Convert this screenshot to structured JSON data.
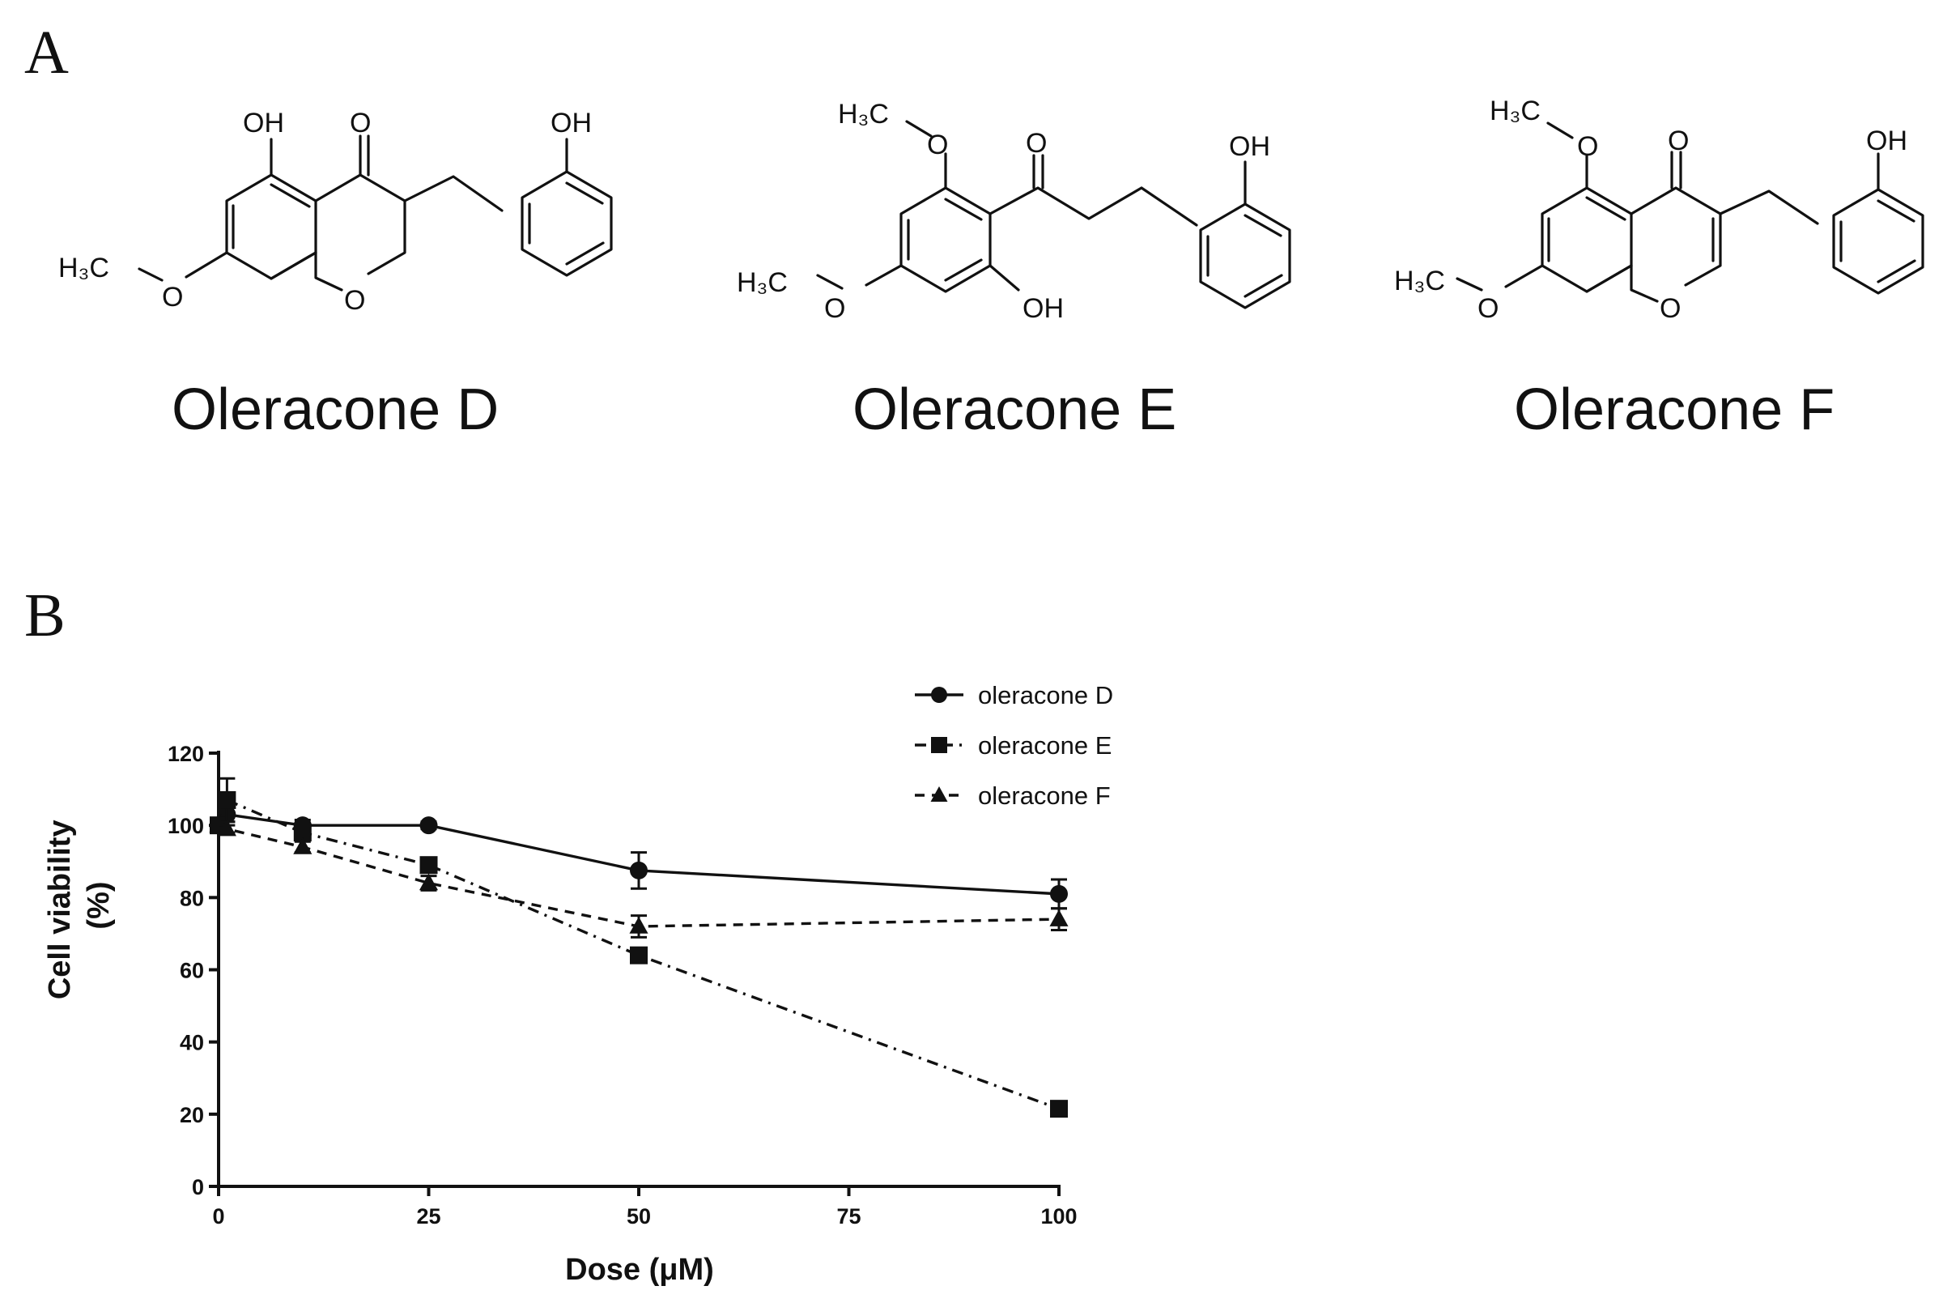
{
  "panels": {
    "a_label": "A",
    "b_label": "B"
  },
  "compounds": [
    {
      "name": "Oleracone D"
    },
    {
      "name": "Oleracone E"
    },
    {
      "name": "Oleracone F"
    }
  ],
  "atom_labels": {
    "oh": "OH",
    "o": "O",
    "h3c": "H₃C"
  },
  "chart_data": {
    "type": "line",
    "xlabel": "Dose (μM)",
    "ylabel": "Cell viability (%)",
    "xlim": [
      0,
      100
    ],
    "ylim": [
      0,
      120
    ],
    "xticks": [
      0,
      25,
      50,
      75,
      100
    ],
    "yticks": [
      0,
      20,
      40,
      60,
      80,
      100,
      120
    ],
    "legend_position": "top-right",
    "series": [
      {
        "name": "oleracone D",
        "marker": "circle",
        "line": "solid",
        "x": [
          0,
          1,
          10,
          25,
          50,
          100
        ],
        "y": [
          100,
          103,
          100,
          100,
          87.5,
          81
        ],
        "err": [
          0,
          2,
          1.5,
          1,
          5,
          4
        ]
      },
      {
        "name": "oleracone E",
        "marker": "square",
        "line": "dash-dot",
        "x": [
          0,
          1,
          10,
          25,
          50,
          100
        ],
        "y": [
          100,
          107,
          98,
          89,
          64,
          21.5
        ],
        "err": [
          0,
          6,
          2,
          2,
          2,
          1
        ]
      },
      {
        "name": "oleracone F",
        "marker": "triangle",
        "line": "dashed",
        "x": [
          0,
          1,
          10,
          25,
          50,
          100
        ],
        "y": [
          100,
          99,
          94,
          84,
          72,
          74
        ],
        "err": [
          0,
          1,
          1.5,
          2,
          3,
          3
        ]
      }
    ]
  }
}
